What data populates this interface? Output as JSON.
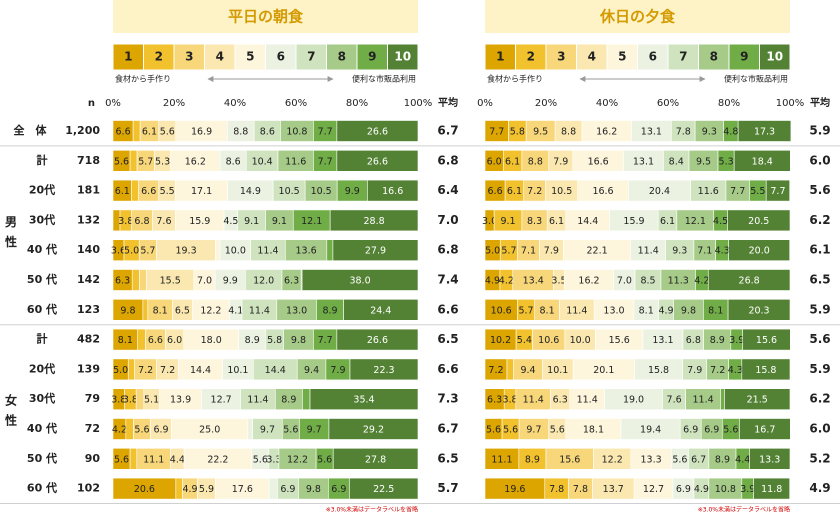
{
  "chart_data": {
    "type": "bar",
    "orientation": "horizontal",
    "stacked": true,
    "categories": [
      "全　体",
      "計",
      "20代",
      "30代",
      "40 代",
      "50 代",
      "60 代",
      "計",
      "20代",
      "30代",
      "40 代",
      "50 代",
      "60 代"
    ],
    "groups": [
      {
        "label": "男性",
        "from": 1,
        "to": 6
      },
      {
        "label": "女性",
        "from": 7,
        "to": 12
      }
    ],
    "n_label": "n",
    "n": [
      "1,200",
      "718",
      "181",
      "132",
      "140",
      "142",
      "123",
      "482",
      "139",
      "79",
      "72",
      "90",
      "102"
    ],
    "mean_label": "平均",
    "scale_low": "食材から手作り",
    "scale_high": "便利な市販品利用",
    "note": "※3.0%未満はデータラベルを省略",
    "xlim": [
      0,
      100
    ],
    "xticks": [
      {
        "value": 0,
        "label": "0%"
      },
      {
        "value": 20,
        "label": "20%"
      },
      {
        "value": 40,
        "label": "40%"
      },
      {
        "value": 60,
        "label": "60%"
      },
      {
        "value": 80,
        "label": "80%"
      },
      {
        "value": 100,
        "label": "100%"
      }
    ],
    "panels": [
      {
        "title": "平日の朝食",
        "mean": [
          "6.7",
          "6.8",
          "6.4",
          "7.0",
          "6.8",
          "7.4",
          "6.6",
          "6.5",
          "6.6",
          "7.3",
          "6.7",
          "6.5",
          "5.7"
        ],
        "series": [
          {
            "name": "1",
            "color": "#dca500",
            "values": [
              6.6,
              5.6,
              6.1,
              2.3,
              3.6,
              6.3,
              9.8,
              8.1,
              5.0,
              3.8,
              4.2,
              5.6,
              20.6
            ],
            "value_labels": [
              "6.6",
              "5.6",
              "6.1",
              null,
              "3.6",
              "6.3",
              "9.8",
              "8.1",
              "5.0",
              "3.8",
              "4.2",
              "5.6",
              "20.6"
            ]
          },
          {
            "name": "2",
            "color": "#f2c12e",
            "values": [
              2.3,
              2.3,
              2.3,
              3.8,
              5.0,
              2.4,
              1.6,
              2.5,
              2.1,
              3.8,
              2.5,
              2.2,
              2.2
            ],
            "value_labels": [
              null,
              null,
              null,
              "3.8",
              "5.0",
              null,
              null,
              null,
              null,
              "3.8",
              null,
              null,
              null
            ]
          },
          {
            "name": "3",
            "color": "#f7d77a",
            "values": [
              6.1,
              5.7,
              6.6,
              6.8,
              5.7,
              2.3,
              8.1,
              6.6,
              7.2,
              2.5,
              5.6,
              11.1,
              4.9
            ],
            "value_labels": [
              "6.1",
              "5.7",
              "6.6",
              "6.8",
              "5.7",
              null,
              "8.1",
              "6.6",
              "7.2",
              null,
              "5.6",
              "11.1",
              "4.9"
            ]
          },
          {
            "name": "4",
            "color": "#fae8b0",
            "values": [
              5.6,
              5.3,
              5.5,
              7.6,
              19.3,
              15.5,
              6.5,
              6.0,
              7.2,
              5.1,
              6.9,
              4.4,
              5.9
            ],
            "value_labels": [
              "5.6",
              "5.3",
              "5.5",
              "7.6",
              "19.3",
              "15.5",
              "6.5",
              "6.0",
              "7.2",
              "5.1",
              "6.9",
              "4.4",
              "5.9"
            ]
          },
          {
            "name": "5",
            "color": "#fdf5dc",
            "values": [
              16.9,
              16.2,
              17.1,
              15.9,
              1.5,
              7.0,
              12.2,
              18.0,
              14.4,
              13.9,
              25.0,
              22.2,
              17.6
            ],
            "value_labels": [
              "16.9",
              "16.2",
              "17.1",
              "15.9",
              null,
              "7.0",
              "12.2",
              "18.0",
              "14.4",
              "13.9",
              "25.0",
              "22.2",
              "17.6"
            ]
          },
          {
            "name": "6",
            "color": "#ebf2e2",
            "values": [
              8.8,
              8.6,
              14.9,
              4.5,
              10.0,
              9.9,
              4.1,
              8.9,
              10.1,
              12.7,
              1.6,
              5.6,
              2.7
            ],
            "value_labels": [
              "8.8",
              "8.6",
              "14.9",
              "4.5",
              "10.0",
              "9.9",
              "4.1",
              "8.9",
              "10.1",
              "12.7",
              null,
              "5.6",
              null
            ]
          },
          {
            "name": "7",
            "color": "#cfe3bf",
            "values": [
              8.6,
              10.4,
              10.5,
              9.1,
              11.4,
              12.0,
              11.4,
              5.8,
              14.4,
              11.4,
              9.7,
              3.3,
              6.9
            ],
            "value_labels": [
              "8.6",
              "10.4",
              "10.5",
              "9.1",
              "11.4",
              "12.0",
              "11.4",
              "5.8",
              "14.4",
              "11.4",
              "9.7",
              "3.3",
              "6.9"
            ]
          },
          {
            "name": "8",
            "color": "#a6ca88",
            "values": [
              10.8,
              11.6,
              10.5,
              9.1,
              13.6,
              6.3,
              13.0,
              9.8,
              9.4,
              8.9,
              5.6,
              12.2,
              9.8
            ],
            "value_labels": [
              "10.8",
              "11.6",
              "10.5",
              "9.1",
              "13.6",
              "6.3",
              "13.0",
              "9.8",
              "9.4",
              "8.9",
              "5.6",
              "12.2",
              "9.8"
            ]
          },
          {
            "name": "9",
            "color": "#70ad47",
            "values": [
              7.7,
              7.7,
              9.9,
              12.1,
              2.0,
              0.3,
              8.9,
              7.7,
              7.9,
              2.5,
              9.7,
              5.6,
              6.9
            ],
            "value_labels": [
              "7.7",
              "7.7",
              "9.9",
              "12.1",
              null,
              null,
              "8.9",
              "7.7",
              "7.9",
              null,
              "9.7",
              "5.6",
              "6.9"
            ]
          },
          {
            "name": "10",
            "color": "#548235",
            "values": [
              26.6,
              26.6,
              16.6,
              28.8,
              27.9,
              38.0,
              24.4,
              26.6,
              22.3,
              35.4,
              29.2,
              27.8,
              22.5
            ],
            "value_labels": [
              "26.6",
              "26.6",
              "16.6",
              "28.8",
              "27.9",
              "38.0",
              "24.4",
              "26.6",
              "22.3",
              "35.4",
              "29.2",
              "27.8",
              "22.5"
            ]
          }
        ]
      },
      {
        "title": "休日の夕食",
        "mean": [
          "5.9",
          "6.0",
          "5.6",
          "6.2",
          "6.1",
          "6.5",
          "5.9",
          "5.6",
          "5.9",
          "6.2",
          "6.0",
          "5.2",
          "4.9"
        ],
        "series": [
          {
            "name": "1",
            "color": "#dca500",
            "values": [
              7.7,
              6.0,
              6.6,
              3.0,
              5.0,
              4.9,
              10.6,
              10.2,
              7.2,
              6.3,
              5.6,
              11.1,
              19.6
            ],
            "value_labels": [
              "7.7",
              "6.0",
              "6.6",
              "3.0",
              "5.0",
              "4.9",
              "10.6",
              "10.2",
              "7.2",
              "6.3",
              "5.6",
              "11.1",
              "19.6"
            ]
          },
          {
            "name": "2",
            "color": "#f2c12e",
            "values": [
              5.8,
              6.1,
              6.1,
              9.1,
              5.7,
              4.2,
              5.7,
              5.4,
              2.2,
              3.8,
              5.6,
              8.9,
              7.8
            ],
            "value_labels": [
              "5.8",
              "6.1",
              "6.1",
              "9.1",
              "5.7",
              "4.2",
              "5.7",
              "5.4",
              null,
              "3.8",
              "5.6",
              "8.9",
              "7.8"
            ]
          },
          {
            "name": "3",
            "color": "#f7d77a",
            "values": [
              9.5,
              8.8,
              7.2,
              8.3,
              7.1,
              13.4,
              8.1,
              10.6,
              9.4,
              11.4,
              9.7,
              15.6,
              7.8
            ],
            "value_labels": [
              "9.5",
              "8.8",
              "7.2",
              "8.3",
              "7.1",
              "13.4",
              "8.1",
              "10.6",
              "9.4",
              "11.4",
              "9.7",
              "15.6",
              "7.8"
            ]
          },
          {
            "name": "4",
            "color": "#fae8b0",
            "values": [
              8.8,
              7.9,
              10.5,
              6.1,
              7.9,
              3.5,
              11.4,
              10.0,
              10.1,
              6.3,
              5.6,
              12.2,
              13.7
            ],
            "value_labels": [
              "8.8",
              "7.9",
              "10.5",
              "6.1",
              "7.9",
              "3.5",
              "11.4",
              "10.0",
              "10.1",
              "6.3",
              "5.6",
              "12.2",
              "13.7"
            ]
          },
          {
            "name": "5",
            "color": "#fdf5dc",
            "values": [
              16.2,
              16.6,
              16.6,
              14.4,
              22.1,
              16.2,
              13.0,
              15.6,
              20.1,
              11.4,
              18.1,
              13.3,
              12.7
            ],
            "value_labels": [
              "16.2",
              "16.6",
              "16.6",
              "14.4",
              "22.1",
              "16.2",
              "13.0",
              "15.6",
              "20.1",
              "11.4",
              "18.1",
              "13.3",
              "12.7"
            ]
          },
          {
            "name": "6",
            "color": "#ebf2e2",
            "values": [
              13.1,
              13.1,
              20.4,
              15.9,
              11.4,
              7.0,
              8.1,
              13.1,
              15.8,
              19.0,
              19.4,
              5.6,
              6.9
            ],
            "value_labels": [
              "13.1",
              "13.1",
              "20.4",
              "15.9",
              "11.4",
              "7.0",
              "8.1",
              "13.1",
              "15.8",
              "19.0",
              "19.4",
              "5.6",
              "6.9"
            ]
          },
          {
            "name": "7",
            "color": "#cfe3bf",
            "values": [
              7.8,
              8.4,
              11.6,
              6.1,
              9.3,
              8.5,
              4.9,
              6.8,
              7.9,
              7.6,
              6.9,
              6.7,
              4.9
            ],
            "value_labels": [
              "7.8",
              "8.4",
              "11.6",
              "6.1",
              "9.3",
              "8.5",
              "4.9",
              "6.8",
              "7.9",
              "7.6",
              "6.9",
              "6.7",
              "4.9"
            ]
          },
          {
            "name": "8",
            "color": "#a6ca88",
            "values": [
              9.3,
              9.5,
              7.7,
              12.1,
              7.1,
              11.3,
              9.8,
              8.9,
              7.2,
              11.4,
              6.9,
              8.9,
              10.8
            ],
            "value_labels": [
              "9.3",
              "9.5",
              "7.7",
              "12.1",
              "7.1",
              "11.3",
              "9.8",
              "8.9",
              "7.2",
              "11.4",
              "6.9",
              "8.9",
              "10.8"
            ]
          },
          {
            "name": "9",
            "color": "#70ad47",
            "values": [
              4.8,
              5.3,
              5.5,
              4.5,
              4.3,
              4.2,
              8.1,
              3.9,
              4.3,
              1.3,
              5.6,
              4.4,
              3.9
            ],
            "value_labels": [
              "4.8",
              "5.3",
              "5.5",
              "4.5",
              "4.3",
              "4.2",
              "8.1",
              "3.9",
              "4.3",
              null,
              "5.6",
              "4.4",
              "3.9"
            ]
          },
          {
            "name": "10",
            "color": "#548235",
            "values": [
              17.3,
              18.4,
              7.7,
              20.5,
              20.0,
              26.8,
              20.3,
              15.6,
              15.8,
              21.5,
              16.7,
              13.3,
              11.8
            ],
            "value_labels": [
              "17.3",
              "18.4",
              "7.7",
              "20.5",
              "20.0",
              "26.8",
              "20.3",
              "15.6",
              "15.8",
              "21.5",
              "16.7",
              "13.3",
              "11.8"
            ]
          }
        ]
      }
    ]
  }
}
